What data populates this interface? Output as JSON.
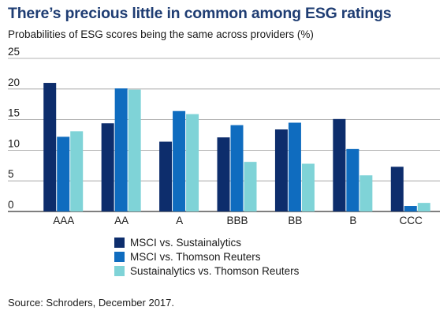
{
  "title": "There’s precious little in common among ESG ratings",
  "subtitle": "Probabilities of ESG scores being the same across providers (%)",
  "source": "Source: Schroders, December 2017.",
  "chart_data": {
    "type": "bar",
    "categories": [
      "AAA",
      "AA",
      "A",
      "BBB",
      "BB",
      "B",
      "CCC"
    ],
    "series": [
      {
        "name": "MSCI vs. Sustainalytics",
        "color": "#0d2d6c",
        "values": [
          21.0,
          14.4,
          11.4,
          12.1,
          13.4,
          15.1,
          7.3
        ]
      },
      {
        "name": "MSCI vs. Thomson Reuters",
        "color": "#0f6cbf",
        "values": [
          12.2,
          20.1,
          16.4,
          14.1,
          14.5,
          10.2,
          0.9
        ]
      },
      {
        "name": "Sustainalytics vs. Thomson Reuters",
        "color": "#7fd3d7",
        "values": [
          13.1,
          19.9,
          15.9,
          8.1,
          7.8,
          5.9,
          1.4
        ]
      }
    ],
    "yticks": [
      "0",
      "5",
      "10",
      "15",
      "20",
      "25"
    ],
    "ylim": [
      0,
      25
    ],
    "grid": true,
    "legend_position": "bottom"
  }
}
